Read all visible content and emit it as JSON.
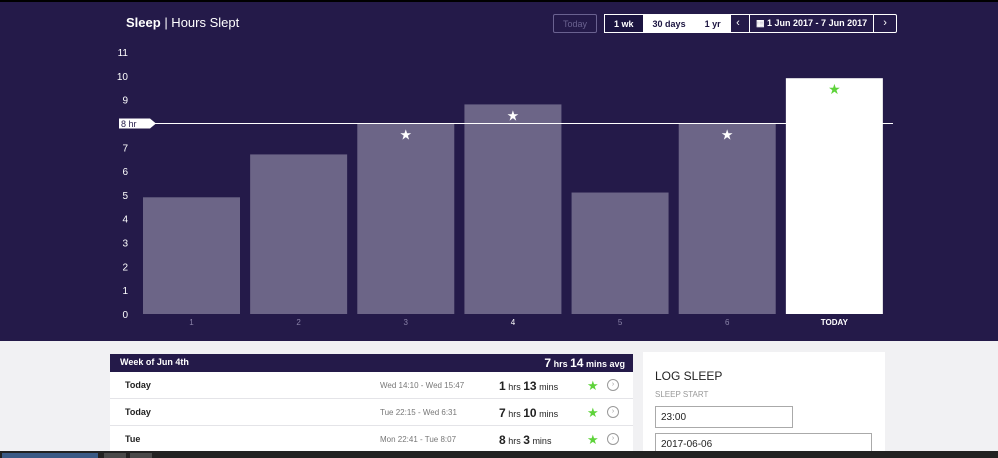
{
  "header": {
    "title_bold": "Sleep",
    "title_rest": "| Hours Slept"
  },
  "range_buttons": [
    {
      "label": "Today",
      "state": "disabled"
    },
    {
      "label": "1 wk",
      "state": "selected"
    },
    {
      "label": "30 days",
      "state": "normal"
    },
    {
      "label": "1 yr",
      "state": "normal"
    }
  ],
  "date_nav": {
    "prev": "‹",
    "label": "1 Jun 2017 - 7 Jun 2017",
    "next": "›"
  },
  "chart_data": {
    "type": "bar",
    "categories": [
      "1",
      "2",
      "3",
      "4",
      "5",
      "6",
      "TODAY"
    ],
    "values": [
      4.9,
      6.7,
      8.0,
      8.8,
      5.1,
      8.0,
      9.9
    ],
    "goal_met": [
      false,
      false,
      true,
      true,
      false,
      true,
      true
    ],
    "highlight": "TODAY",
    "ylim": [
      0,
      11
    ],
    "yticks": [
      "0",
      "1",
      "2",
      "3",
      "4",
      "5",
      "6",
      "7",
      "8",
      "9",
      "10",
      "11"
    ],
    "goal_line": {
      "value": 8,
      "label": "8 hr"
    },
    "colors": {
      "bar": "#6c6587",
      "today": "#ffffff",
      "star": "#ffffff",
      "today_star": "#5ed33a"
    }
  },
  "week_panel": {
    "title": "Week of Jun 4th",
    "avg_hrs": "7",
    "avg_mins": "14",
    "avg_suffix": "mins avg",
    "rows": [
      {
        "day": "Today",
        "range": "Wed 14:10 - Wed 15:47",
        "hrs": "1",
        "mins": "13"
      },
      {
        "day": "Today",
        "range": "Tue 22:15 - Wed 6:31",
        "hrs": "7",
        "mins": "10"
      },
      {
        "day": "Tue",
        "range": "Mon 22:41 - Tue 8:07",
        "hrs": "8",
        "mins": "3"
      }
    ],
    "hrs_label": "hrs",
    "mins_label": "mins",
    "star_icon": "★",
    "info_icon": "›"
  },
  "log_sleep": {
    "title": "LOG SLEEP",
    "start_label": "SLEEP START",
    "start_time": "23:00",
    "start_date": "2017-06-06"
  }
}
